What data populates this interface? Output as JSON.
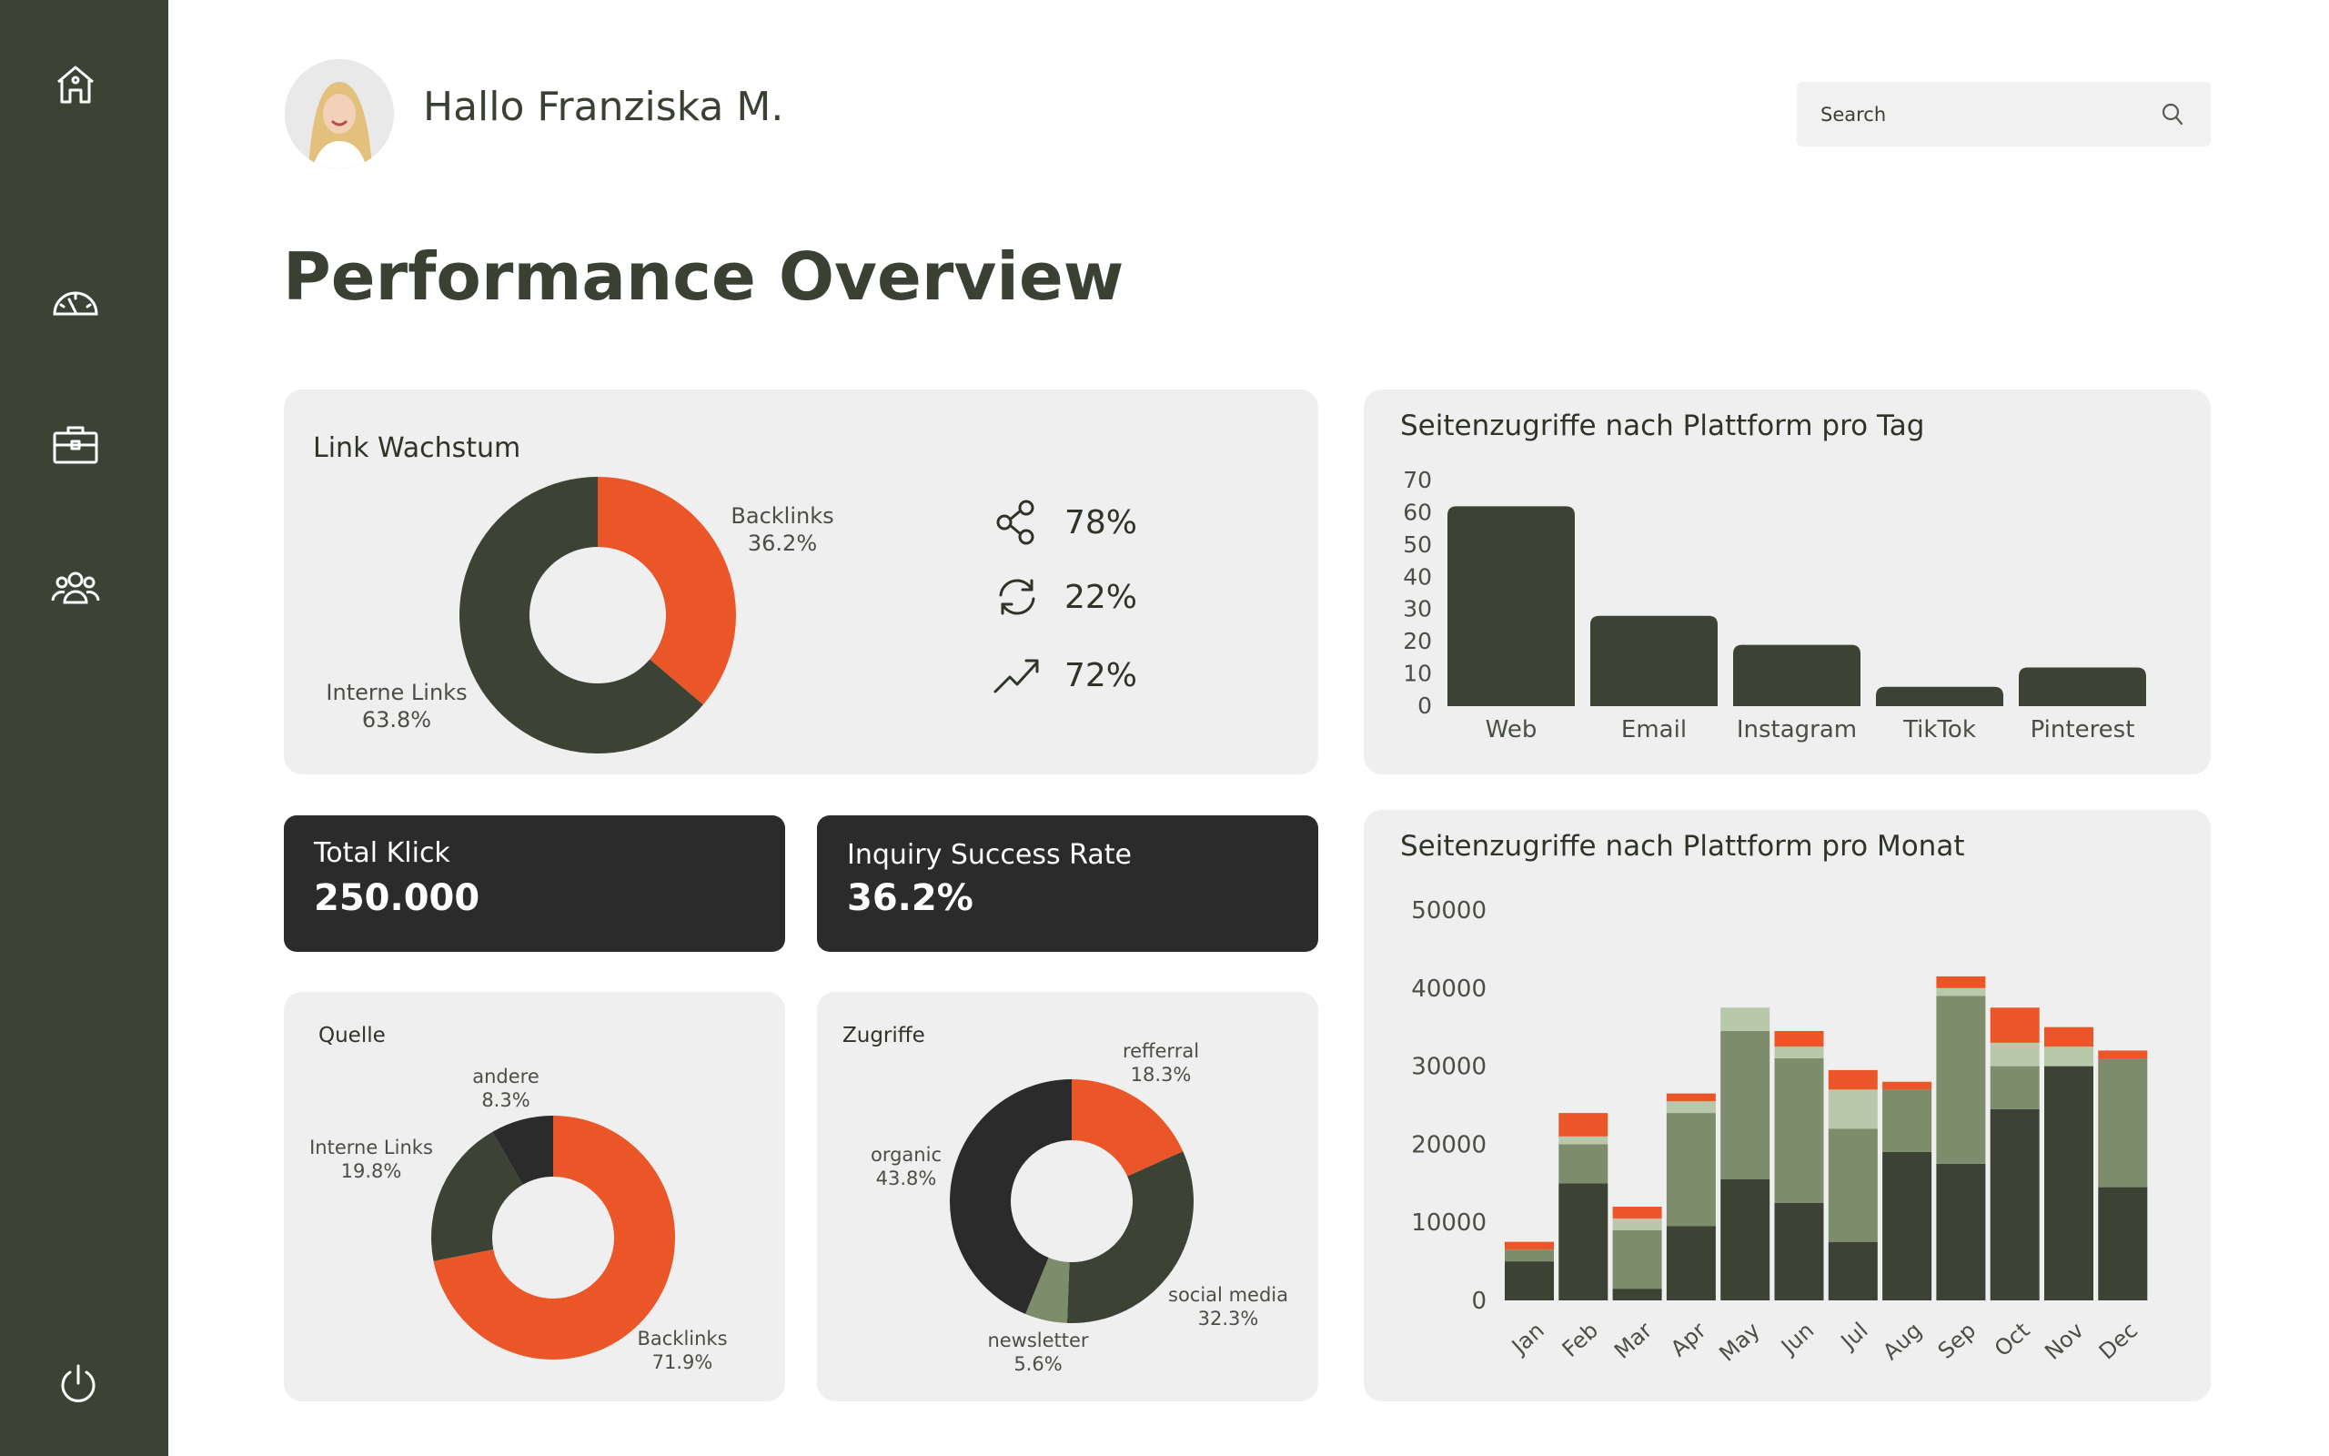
{
  "user": {
    "greeting": "Hallo Franziska M."
  },
  "search": {
    "placeholder": "Search"
  },
  "page": {
    "title": "Performance Overview"
  },
  "colors": {
    "sidebar": "#3c4234",
    "dark_green": "#3c4234",
    "mid_green": "#7d8c6b",
    "light_green": "#b8c8aa",
    "orange": "#eb5628",
    "near_black": "#2b2b2b"
  },
  "sidebar": {
    "icons": [
      "home-icon",
      "dashboard-gauge-icon",
      "briefcase-icon",
      "users-group-icon",
      "power-icon"
    ]
  },
  "link_growth": {
    "title": "Link Wachstum",
    "segments": [
      {
        "label": "Backlinks",
        "value": "36.2%",
        "pct": 36.2,
        "color": "#eb5628"
      },
      {
        "label": "Interne Links",
        "value": "63.8%",
        "pct": 63.8,
        "color": "#3c4234"
      }
    ],
    "stats": [
      {
        "icon": "share-icon",
        "value": "78%"
      },
      {
        "icon": "refresh-icon",
        "value": "22%"
      },
      {
        "icon": "trend-up-icon",
        "value": "72%"
      }
    ]
  },
  "kpis": {
    "total_clicks": {
      "label": "Total Klick",
      "value": "250.000"
    },
    "inquiry_rate": {
      "label": "Inquiry Success Rate",
      "value": "36.2%"
    }
  },
  "source": {
    "title": "Quelle",
    "segments": [
      {
        "label": "Backlinks",
        "value": "71.9%",
        "pct": 71.9,
        "color": "#eb5628"
      },
      {
        "label": "Interne Links",
        "value": "19.8%",
        "pct": 19.8,
        "color": "#3c4234"
      },
      {
        "label": "andere",
        "value": "8.3%",
        "pct": 8.3,
        "color": "#2b2b2b"
      }
    ]
  },
  "access": {
    "title": "Zugriffe",
    "segments": [
      {
        "label": "refferral",
        "value": "18.3%",
        "pct": 18.3,
        "color": "#eb5628"
      },
      {
        "label": "social media",
        "value": "32.3%",
        "pct": 32.3,
        "color": "#3c4234"
      },
      {
        "label": "newsletter",
        "value": "5.6%",
        "pct": 5.6,
        "color": "#7d8c6b"
      },
      {
        "label": "organic",
        "value": "43.8%",
        "pct": 43.8,
        "color": "#2b2b2b"
      }
    ]
  },
  "chart_data": [
    {
      "type": "bar",
      "title": "Seitenzugriffe nach Plattform pro Tag",
      "categories": [
        "Web",
        "Email",
        "Instagram",
        "TikTok",
        "Pinterest"
      ],
      "values": [
        62,
        28,
        19,
        6,
        12
      ],
      "ylim": [
        0,
        70
      ],
      "yticks": [
        0,
        10,
        20,
        30,
        40,
        50,
        60,
        70
      ],
      "color": "#3c4234"
    },
    {
      "type": "bar",
      "stacked": true,
      "title": "Seitenzugriffe nach Plattform pro Monat",
      "categories": [
        "Jan",
        "Feb",
        "Mar",
        "Apr",
        "May",
        "Jun",
        "Jul",
        "Aug",
        "Sep",
        "Oct",
        "Nov",
        "Dec"
      ],
      "ylim": [
        0,
        50000
      ],
      "yticks": [
        0,
        10000,
        20000,
        30000,
        40000,
        50000
      ],
      "series": [
        {
          "color": "#3c4234",
          "values": [
            5000,
            15000,
            1500,
            9500,
            15500,
            12500,
            7500,
            19000,
            17500,
            24500,
            30000,
            14500
          ]
        },
        {
          "color": "#7d8c6b",
          "values": [
            1500,
            5000,
            7500,
            14500,
            19000,
            18500,
            14500,
            8000,
            21500,
            5500,
            0,
            16500
          ]
        },
        {
          "color": "#b8c8aa",
          "values": [
            0,
            1000,
            1500,
            1500,
            3000,
            1500,
            5000,
            0,
            1000,
            3000,
            2500,
            0
          ]
        },
        {
          "color": "#eb5628",
          "values": [
            1000,
            3000,
            1500,
            1000,
            0,
            2000,
            2500,
            1000,
            1500,
            4500,
            2500,
            1000
          ]
        }
      ]
    }
  ]
}
